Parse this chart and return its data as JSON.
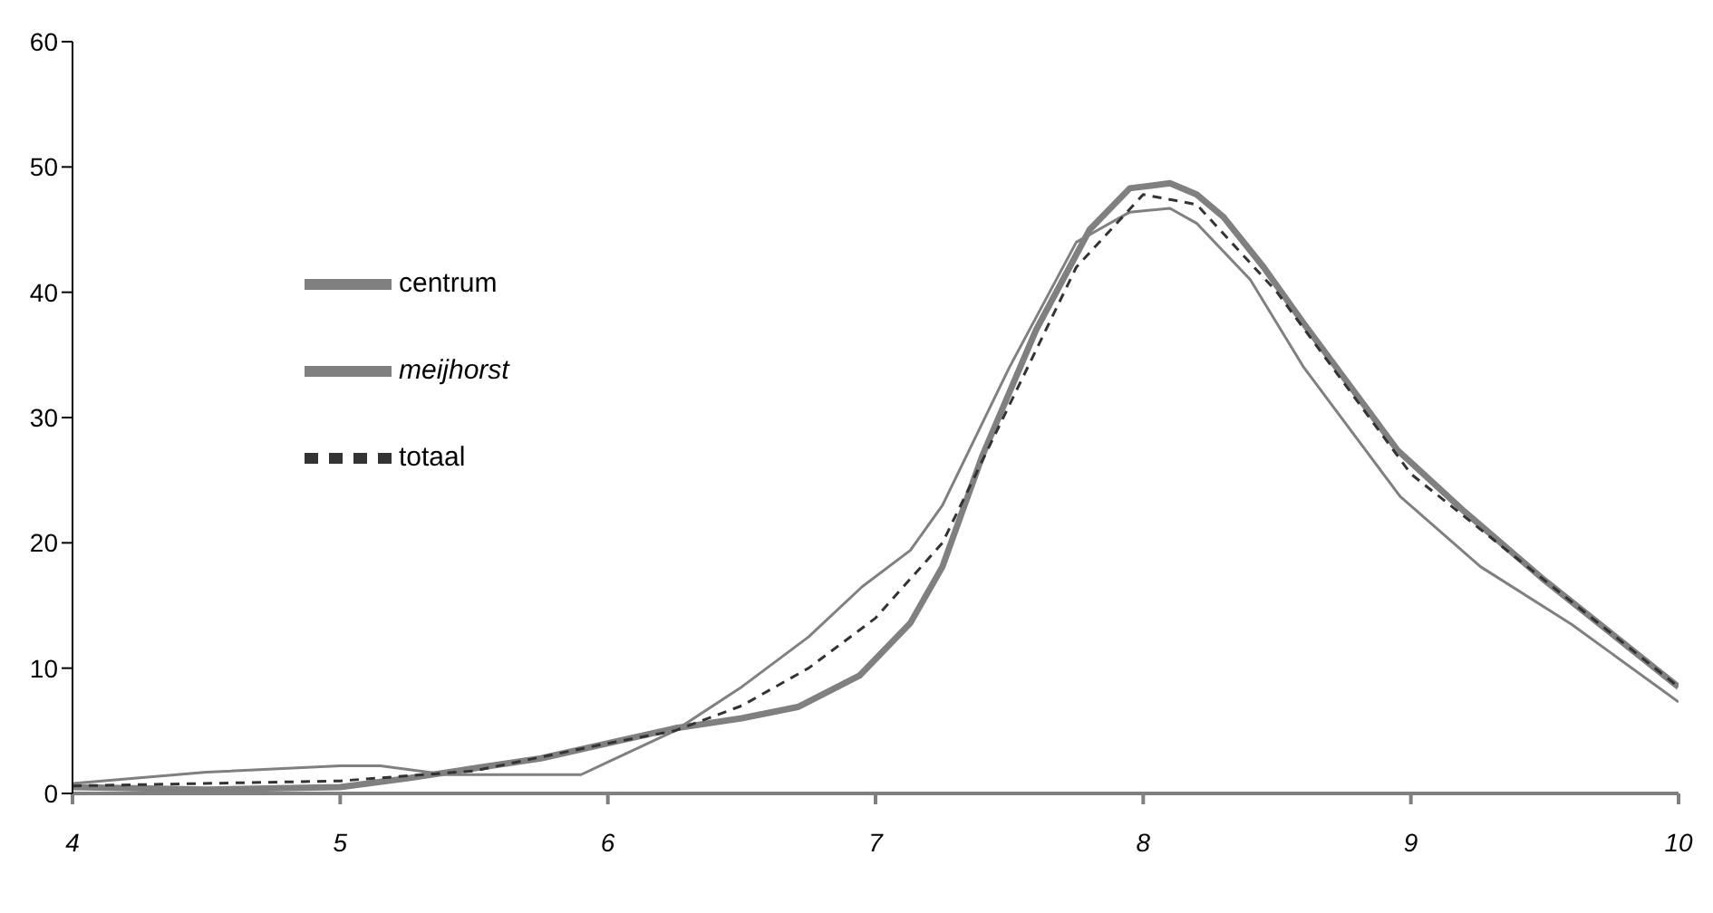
{
  "chart_data": {
    "type": "line",
    "xlim": [
      4,
      10
    ],
    "xticks": [
      4,
      5,
      6,
      7,
      8,
      9,
      10
    ],
    "ylim": [
      0,
      60
    ],
    "yticks": [
      0,
      10,
      20,
      30,
      40,
      50,
      60
    ],
    "grid": false,
    "legend": "top left",
    "marker": "none",
    "series": [
      {
        "name": "centrum",
        "color": "#808080",
        "line_style": "solid",
        "x": [
          4,
          4.5,
          5,
          5.25,
          5.5,
          5.75,
          6,
          6.25,
          6.5,
          6.71,
          6.94,
          7.13,
          7.25,
          7.4,
          7.6,
          7.8,
          7.95,
          8.1,
          8.2,
          8.3,
          8.45,
          8.6,
          8.95,
          9.2,
          9.5,
          10
        ],
        "values": [
          0.5,
          0.3,
          0.5,
          1.2,
          2,
          2.8,
          4,
          5.2,
          6,
          6.9,
          9.4,
          13.6,
          18.1,
          27,
          37,
          45,
          48.3,
          48.7,
          47.8,
          46,
          42,
          37.5,
          27.4,
          22.5,
          17,
          8.5
        ]
      },
      {
        "name": "meijhorst",
        "color": "#808080",
        "line_style": "solid",
        "x": [
          4,
          4.5,
          5,
          5.15,
          5.4,
          5.9,
          6,
          6.25,
          6.5,
          6.75,
          6.95,
          7.13,
          7.25,
          7.5,
          7.75,
          7.95,
          8.1,
          8.2,
          8.4,
          8.6,
          8.96,
          9.26,
          9.6,
          10
        ],
        "values": [
          0.8,
          1.7,
          2.2,
          2.2,
          1.5,
          1.5,
          2.5,
          5,
          8.5,
          12.5,
          16.5,
          19.4,
          23,
          34,
          44,
          46.4,
          46.7,
          45.5,
          41,
          34,
          23.7,
          18.1,
          13.5,
          7.3
        ]
      },
      {
        "name": "totaal",
        "color": "#333333",
        "line_style": "dashed",
        "x": [
          4,
          5,
          5.5,
          6,
          6.25,
          6.5,
          6.75,
          7,
          7.25,
          7.5,
          7.75,
          8,
          8.2,
          8.5,
          9,
          9.5,
          10
        ],
        "values": [
          0.6,
          1,
          1.8,
          4,
          5,
          7,
          10,
          14,
          20,
          31,
          42,
          47.8,
          47,
          40,
          25.5,
          17,
          8.5
        ]
      }
    ]
  }
}
